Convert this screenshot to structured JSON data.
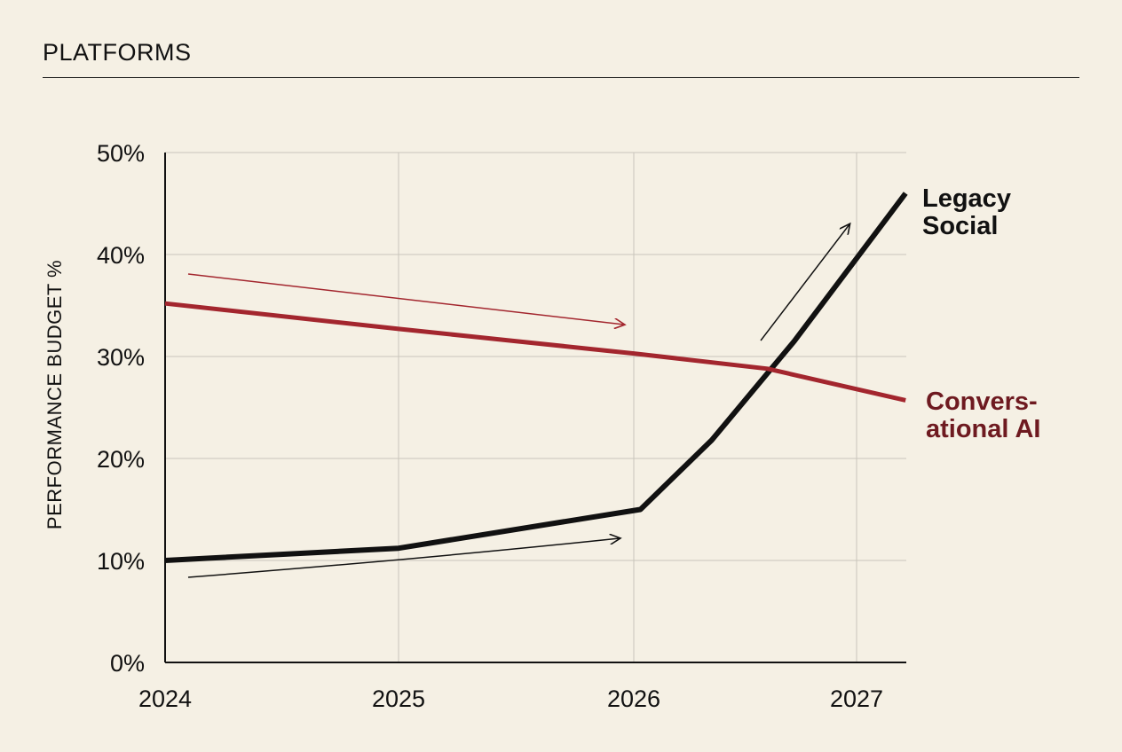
{
  "header": {
    "title": "PLATFORMS"
  },
  "chart_data": {
    "type": "line",
    "ylabel": "PERFORMANCE BUDGET %",
    "xlabel": "",
    "x_ticks": [
      "2024",
      "2025",
      "2026",
      "2027"
    ],
    "y_ticks": [
      "0%",
      "10%",
      "20%",
      "30%",
      "40%",
      "50%"
    ],
    "xlim": [
      2024,
      2027.22
    ],
    "ylim": [
      0,
      50
    ],
    "grid": true,
    "series": [
      {
        "name": "Legacy Social",
        "label_lines": [
          "Legacy",
          "Social"
        ],
        "color": "#111111",
        "x": [
          2024,
          2025,
          2026.03,
          2026.35,
          2026.72,
          2027.22
        ],
        "y": [
          10,
          11.2,
          15,
          21.8,
          31.5,
          46
        ]
      },
      {
        "name": "Conversational AI",
        "label_lines": [
          "Convers-",
          "ational AI"
        ],
        "color": "#a3262e",
        "label_color": "#6e1a20",
        "x": [
          2024,
          2025,
          2026,
          2026.6,
          2027,
          2027.22
        ],
        "y": [
          35.2,
          32.7,
          30.3,
          28.8,
          26.8,
          25.7
        ]
      }
    ]
  }
}
